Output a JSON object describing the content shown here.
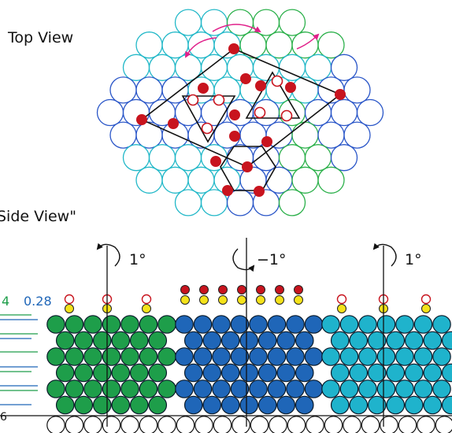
{
  "labels": {
    "top_view": "Top View",
    "side_view": "Side View\"",
    "rot_left": "1°",
    "rot_middle": "−1°",
    "rot_right": "1°",
    "scale_a": "4",
    "scale_b": "0.28",
    "scale_bottom": "6"
  },
  "colors": {
    "green": "#1e9e4a",
    "blue": "#1f66b8",
    "cyan": "#1fb3cc",
    "red": "#c8141e",
    "yellow": "#f4e21a",
    "magenta": "#e0208a",
    "outline_blue": "#2a56c8",
    "outline_cyan": "#22b8c8",
    "outline_green": "#2bb04a"
  },
  "top_view": {
    "red_dots": 15,
    "open_red_circles": 6,
    "markers": [
      "rhombus",
      "triangle-down",
      "triangle-up",
      "hexagon"
    ],
    "rotation_arrows": 3
  },
  "side_view": {
    "panels": [
      {
        "color": "green",
        "rotation": "1°"
      },
      {
        "color": "blue",
        "rotation": "−1°"
      },
      {
        "color": "cyan",
        "rotation": "1°"
      }
    ]
  }
}
